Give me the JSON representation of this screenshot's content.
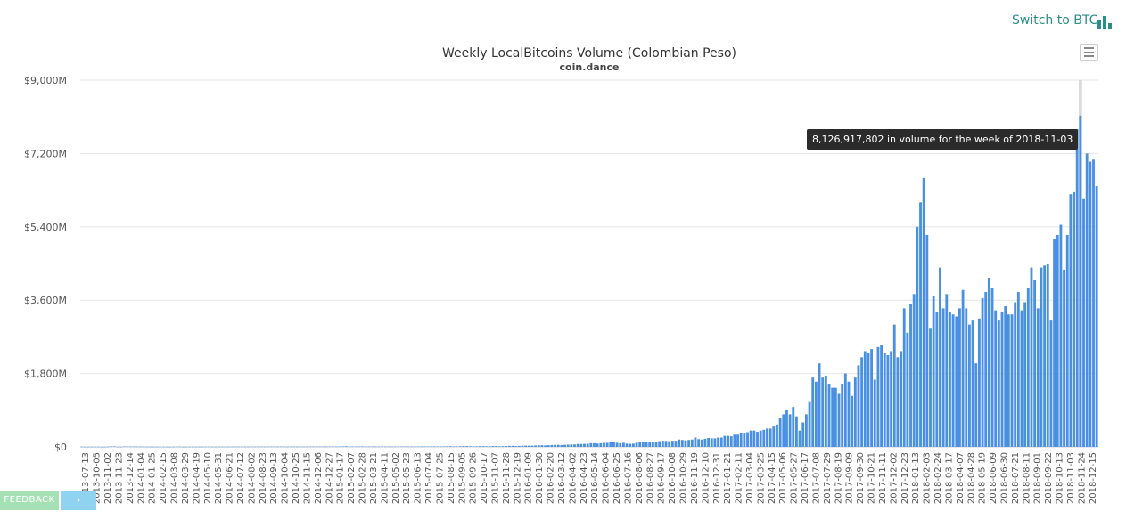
{
  "header": {
    "switch_label": "Switch to BTC",
    "switch_icon": "bar-chart-icon",
    "accent_color": "#2a8f86"
  },
  "feedback": {
    "label": "FEEDBACK",
    "toggle_icon": "chevron-icon"
  },
  "chart_data": {
    "type": "bar",
    "title": "Weekly LocalBitcoins Volume (Colombian Peso)",
    "subtitle": "coin.dance",
    "xlabel": "",
    "ylabel": "",
    "ylim": [
      0,
      9000
    ],
    "y_ticks": [
      0,
      1800,
      3600,
      5400,
      7200,
      9000
    ],
    "y_tick_labels": [
      "$0",
      "$1,800M",
      "$3,600M",
      "$5,400M",
      "$7,200M",
      "$9,000M"
    ],
    "bar_color": "#4a90e2",
    "grid": true,
    "legend": "none",
    "x_tick_labels": [
      "2013-07-13",
      "2013-10-05",
      "2013-11-02",
      "2013-11-23",
      "2013-12-14",
      "2014-01-04",
      "2014-01-25",
      "2014-02-15",
      "2014-03-08",
      "2014-03-29",
      "2014-04-19",
      "2014-05-10",
      "2014-05-31",
      "2014-06-21",
      "2014-07-12",
      "2014-08-02",
      "2014-08-23",
      "2014-09-13",
      "2014-10-04",
      "2014-10-25",
      "2014-11-15",
      "2014-12-06",
      "2014-12-27",
      "2015-01-17",
      "2015-02-07",
      "2015-02-28",
      "2015-03-21",
      "2015-04-11",
      "2015-05-02",
      "2015-05-23",
      "2015-06-13",
      "2015-07-04",
      "2015-07-25",
      "2015-08-15",
      "2015-09-05",
      "2015-09-26",
      "2015-10-17",
      "2015-11-07",
      "2015-11-28",
      "2015-12-19",
      "2016-01-09",
      "2016-01-30",
      "2016-02-20",
      "2016-03-12",
      "2016-04-02",
      "2016-04-23",
      "2016-05-14",
      "2016-06-04",
      "2016-06-25",
      "2016-07-16",
      "2016-08-06",
      "2016-08-27",
      "2016-09-17",
      "2016-10-08",
      "2016-10-29",
      "2016-11-19",
      "2016-12-10",
      "2016-12-31",
      "2017-01-21",
      "2017-02-11",
      "2017-03-04",
      "2017-03-25",
      "2017-04-15",
      "2017-05-06",
      "2017-05-27",
      "2017-06-17",
      "2017-07-08",
      "2017-07-29",
      "2017-08-19",
      "2017-09-09",
      "2017-09-30",
      "2017-10-21",
      "2017-11-11",
      "2017-12-02",
      "2017-12-23",
      "2018-01-13",
      "2018-02-03",
      "2018-02-24",
      "2018-03-17",
      "2018-04-07",
      "2018-04-28",
      "2018-05-19",
      "2018-06-09",
      "2018-06-30",
      "2018-07-21",
      "2018-08-11",
      "2018-09-01",
      "2018-09-22",
      "2018-10-13",
      "2018-11-03",
      "2018-11-24",
      "2018-12-15"
    ],
    "values": [
      5,
      1,
      2,
      3,
      3,
      2,
      1,
      2,
      4,
      12,
      12,
      3,
      2,
      10,
      10,
      8,
      8,
      6,
      5,
      4,
      4,
      4,
      4,
      2,
      3,
      3,
      2,
      2,
      3,
      5,
      6,
      2,
      3,
      4,
      4,
      3,
      4,
      4,
      5,
      5,
      3,
      3,
      4,
      4,
      4,
      4,
      5,
      5,
      6,
      5,
      5,
      4,
      6,
      6,
      7,
      6,
      6,
      7,
      8,
      8,
      5,
      8,
      5,
      6,
      6,
      7,
      5,
      6,
      6,
      7,
      8,
      8,
      9,
      8,
      8,
      8,
      10,
      10,
      9,
      9,
      12,
      15,
      10,
      9,
      9,
      10,
      12,
      8,
      8,
      10,
      8,
      6,
      10,
      8,
      9,
      7,
      8,
      10,
      10,
      10,
      8,
      8,
      10,
      10,
      8,
      10,
      10,
      12,
      12,
      10,
      10,
      12,
      15,
      15,
      10,
      12,
      14,
      20,
      20,
      15,
      14,
      14,
      18,
      18,
      15,
      15,
      20,
      20,
      16,
      18,
      20,
      25,
      25,
      20,
      24,
      30,
      30,
      30,
      30,
      35,
      40,
      40,
      35,
      40,
      45,
      50,
      50,
      45,
      50,
      55,
      60,
      60,
      70,
      70,
      75,
      75,
      90,
      90,
      80,
      90,
      100,
      100,
      120,
      110,
      100,
      90,
      100,
      80,
      75,
      80,
      100,
      110,
      120,
      130,
      130,
      120,
      130,
      140,
      150,
      145,
      140,
      150,
      150,
      180,
      170,
      160,
      170,
      180,
      230,
      190,
      180,
      200,
      220,
      210,
      210,
      230,
      230,
      270,
      270,
      260,
      300,
      300,
      350,
      350,
      360,
      400,
      400,
      370,
      400,
      420,
      450,
      450,
      500,
      550,
      700,
      800,
      900,
      800,
      980,
      750,
      400,
      600,
      800,
      1100,
      1700,
      1600,
      2050,
      1700,
      1750,
      1550,
      1450,
      1450,
      1300,
      1550,
      1800,
      1600,
      1250,
      1700,
      2000,
      2200,
      2350,
      2300,
      2400,
      1650,
      2450,
      2500,
      2300,
      2250,
      2350,
      3000,
      2200,
      2350,
      3400,
      2800,
      3500,
      3750,
      5400,
      6000,
      6600,
      5200,
      2900,
      3700,
      3300,
      4400,
      3400,
      3750,
      3300,
      3250,
      3200,
      3400,
      3850,
      3400,
      3000,
      3100,
      2050,
      3150,
      3650,
      3800,
      4150,
      3900,
      3350,
      3100,
      3300,
      3450,
      3250,
      3250,
      3550,
      3800,
      3350,
      3550,
      3900,
      4400,
      4100,
      3400,
      4400,
      4450,
      4500,
      3100,
      5100,
      5200,
      5450,
      4350,
      5200,
      6200,
      6250,
      7800,
      8130,
      6100,
      7200,
      7000,
      7050,
      6400
    ],
    "tooltip": "8,126,917,802 in volume for the week of 2018-11-03"
  }
}
